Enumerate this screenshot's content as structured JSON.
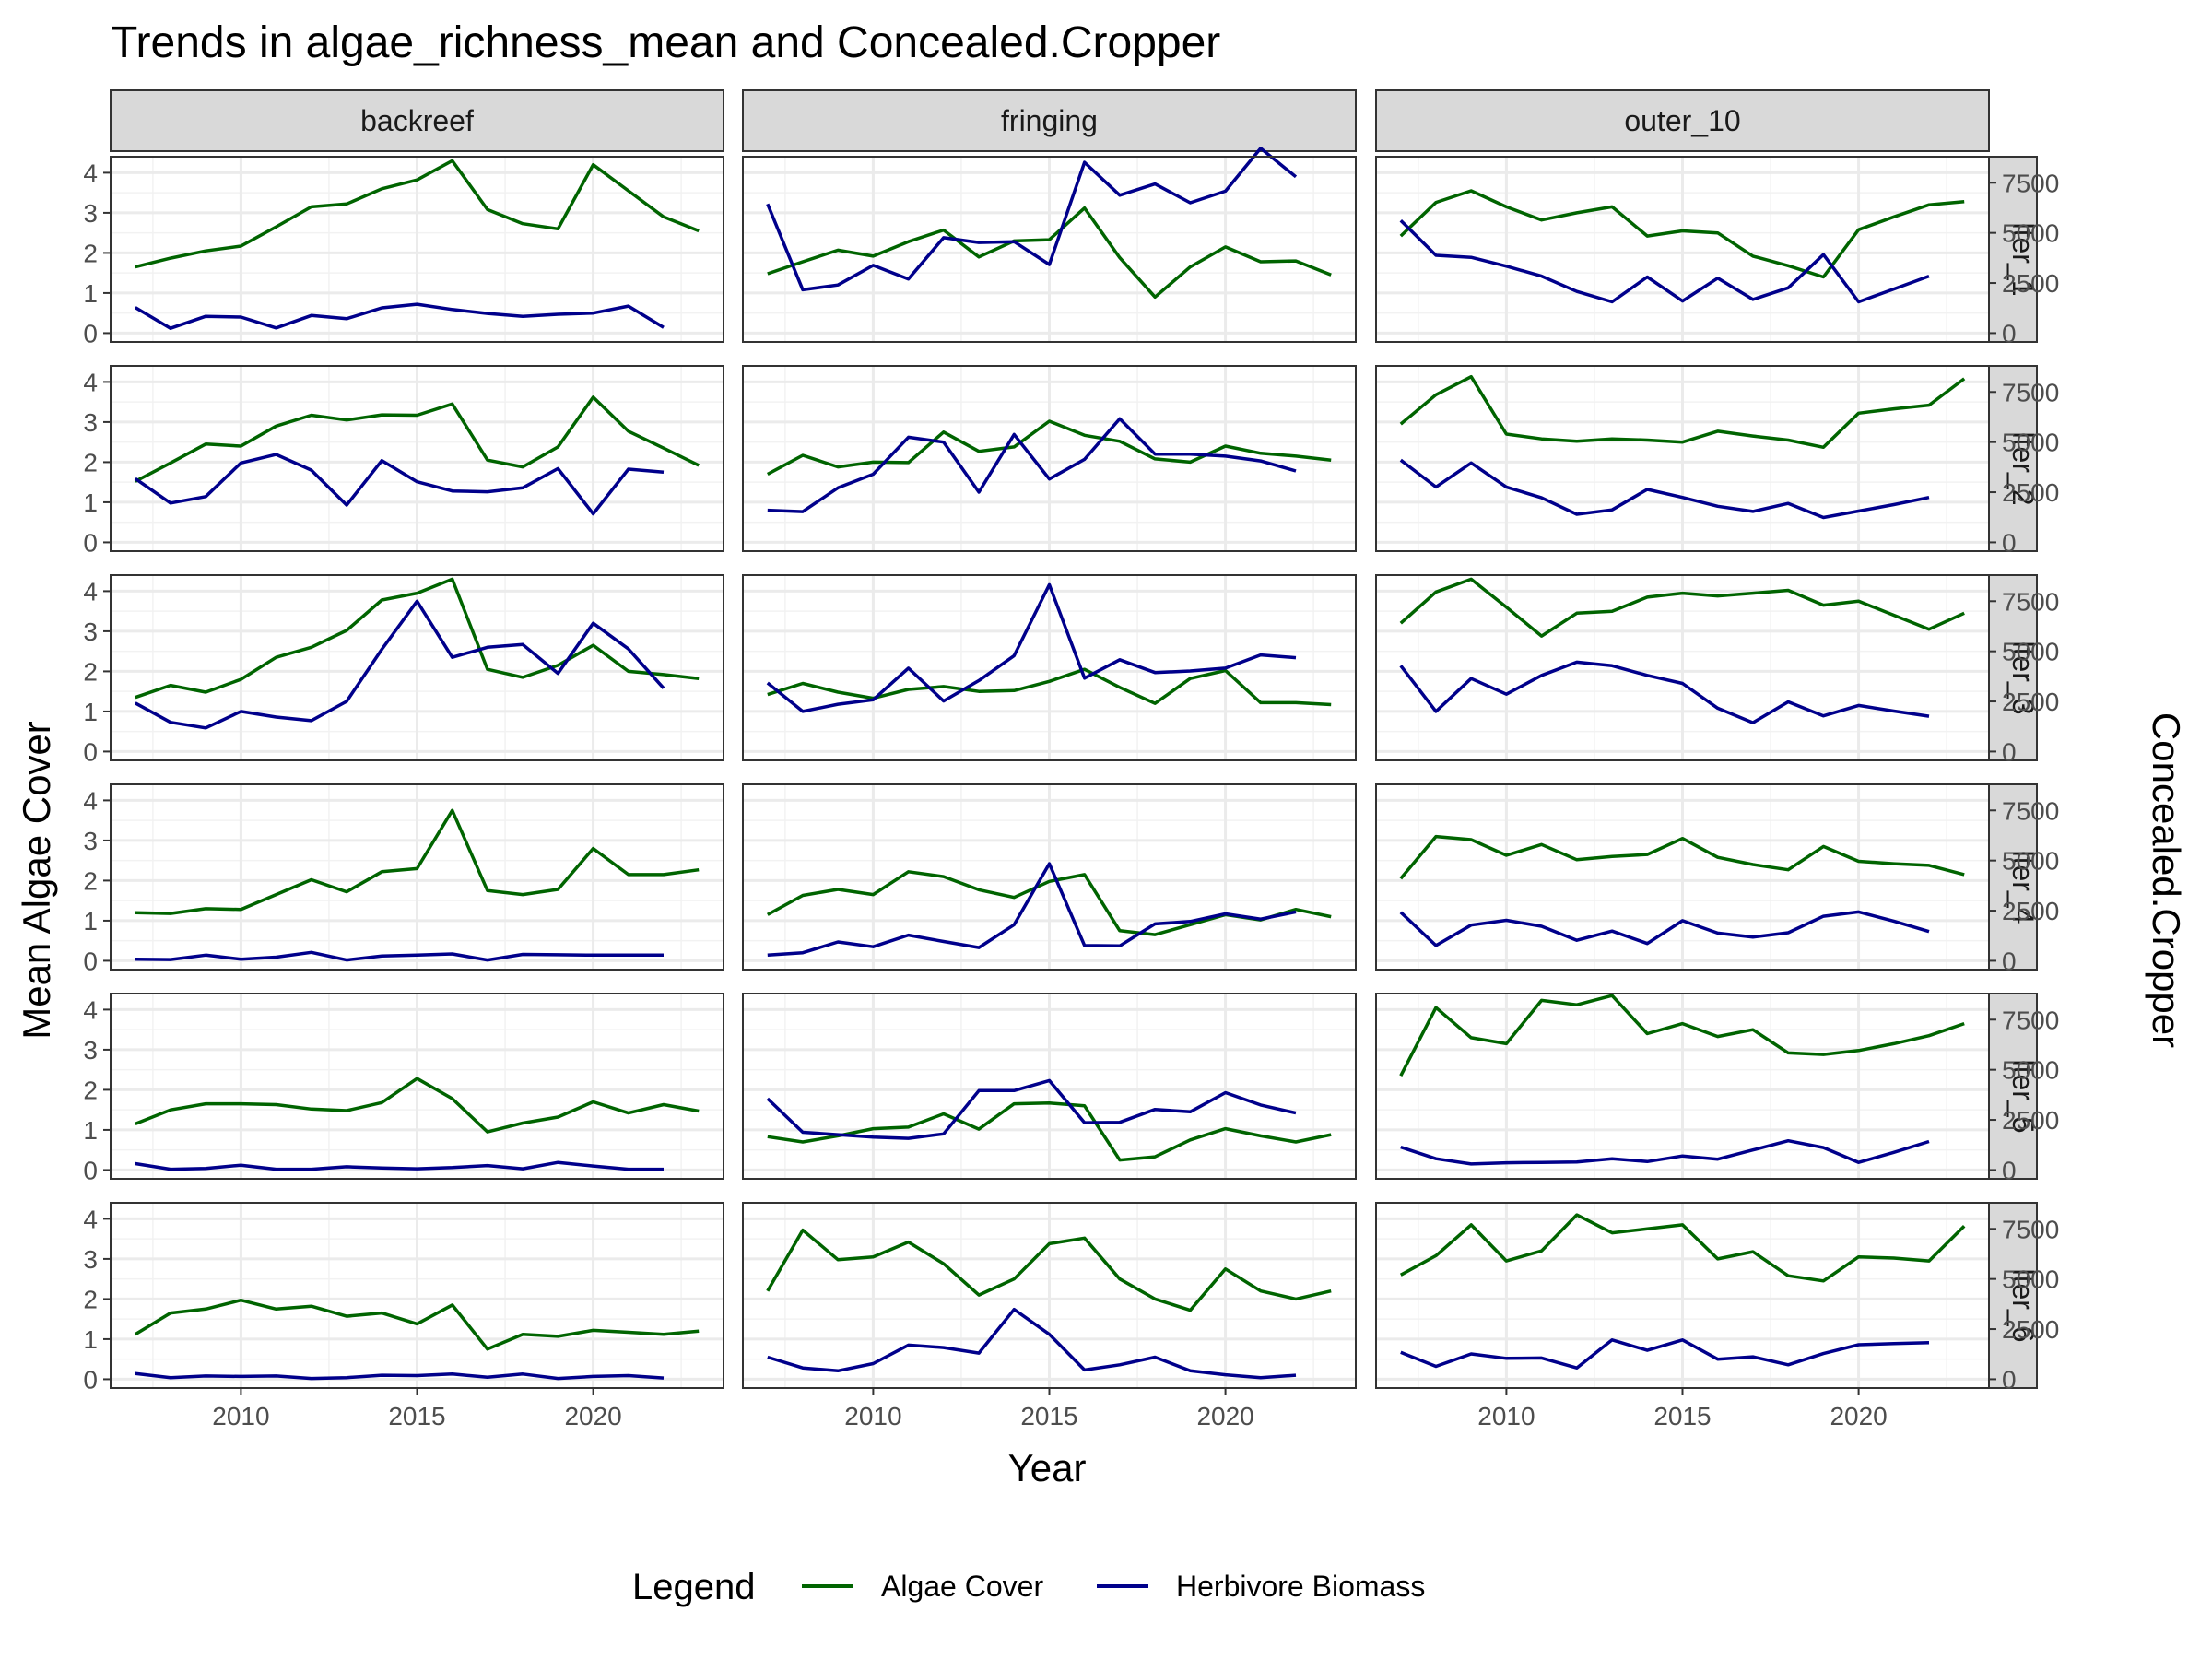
{
  "chart_data": {
    "type": "line",
    "title": "Trends in algae_richness_mean and Concealed.Cropper",
    "xlabel": "Year",
    "ylabel": "Mean Algae Cover",
    "y2label": "Concealed.Cropper",
    "x_ticks": [
      2010,
      2015,
      2020
    ],
    "y_ticks": [
      0,
      1,
      2,
      3,
      4
    ],
    "y2_ticks": [
      0,
      2500,
      5000,
      7500
    ],
    "xlim": [
      2006.3,
      2023.7
    ],
    "ylim": [
      -0.22,
      4.4
    ],
    "y2_scale": 2000,
    "grid": true,
    "colors": {
      "algae": "#006400",
      "herbivore": "#00008B"
    },
    "columns": [
      "backreef",
      "fringing",
      "outer_10"
    ],
    "rows": [
      "lter_1",
      "lter_2",
      "lter_3",
      "lter_4",
      "lter_5",
      "lter_6"
    ],
    "legend": {
      "title": "Legend",
      "position": "bottom",
      "entries": [
        {
          "key": "algae",
          "label": "Algae Cover",
          "color": "#006400"
        },
        {
          "key": "herbivore",
          "label": "Herbivore Biomass",
          "color": "#00008B"
        }
      ]
    },
    "algae_years": [
      2007,
      2008,
      2009,
      2010,
      2011,
      2012,
      2013,
      2014,
      2015,
      2016,
      2017,
      2018,
      2019,
      2020,
      2021,
      2022,
      2023
    ],
    "herbivore_years": [
      2007,
      2008,
      2009,
      2010,
      2011,
      2012,
      2013,
      2014,
      2015,
      2016,
      2017,
      2018,
      2019,
      2020,
      2021,
      2022
    ],
    "panels": [
      {
        "row": "lter_1",
        "column": "backreef",
        "algae": [
          1.65,
          1.87,
          2.05,
          2.17,
          2.65,
          3.15,
          3.22,
          3.6,
          3.82,
          4.3,
          3.08,
          2.73,
          2.6,
          4.2,
          3.55,
          2.9,
          2.55
        ],
        "herbivore": [
          1280,
          240,
          840,
          800,
          260,
          880,
          720,
          1260,
          1440,
          1180,
          980,
          840,
          940,
          1000,
          1350,
          280
        ]
      },
      {
        "row": "lter_1",
        "column": "fringing",
        "algae": [
          1.48,
          1.78,
          2.07,
          1.92,
          2.28,
          2.57,
          1.9,
          2.3,
          2.33,
          3.12,
          1.88,
          0.9,
          1.65,
          2.15,
          1.78,
          1.8,
          1.45
        ],
        "herbivore": [
          6440,
          2160,
          2400,
          3380,
          2700,
          4760,
          4520,
          4560,
          3420,
          8520,
          6880,
          7440,
          6500,
          7080,
          9220,
          7800
        ]
      },
      {
        "row": "lter_1",
        "column": "outer_10",
        "algae": [
          2.42,
          3.26,
          3.55,
          3.15,
          2.82,
          3.0,
          3.15,
          2.42,
          2.55,
          2.5,
          1.92,
          1.68,
          1.4,
          2.58,
          2.9,
          3.2,
          3.28
        ],
        "herbivore": [
          5620,
          3880,
          3780,
          3340,
          2840,
          2080,
          1560,
          2800,
          1600,
          2740,
          1680,
          2260,
          3920,
          1560,
          2200,
          2840
        ]
      },
      {
        "row": "lter_2",
        "column": "backreef",
        "algae": [
          1.52,
          1.98,
          2.45,
          2.4,
          2.9,
          3.17,
          3.05,
          3.18,
          3.17,
          3.45,
          2.05,
          1.88,
          2.38,
          3.62,
          2.77,
          2.35,
          1.92
        ],
        "herbivore": [
          3180,
          1960,
          2280,
          3960,
          4380,
          3600,
          1860,
          4080,
          3020,
          2560,
          2520,
          2720,
          3680,
          1420,
          3650,
          3500
        ]
      },
      {
        "row": "lter_2",
        "column": "fringing",
        "algae": [
          1.7,
          2.17,
          1.88,
          2.0,
          1.99,
          2.75,
          2.27,
          2.38,
          3.02,
          2.67,
          2.52,
          2.08,
          2.0,
          2.4,
          2.22,
          2.15,
          2.05
        ],
        "herbivore": [
          1600,
          1530,
          2720,
          3400,
          5240,
          5000,
          2500,
          5380,
          3160,
          4140,
          6160,
          4400,
          4400,
          4300,
          4060,
          3560
        ]
      },
      {
        "row": "lter_2",
        "column": "outer_10",
        "algae": [
          2.95,
          3.68,
          4.13,
          2.7,
          2.58,
          2.52,
          2.58,
          2.55,
          2.5,
          2.77,
          2.65,
          2.55,
          2.37,
          3.22,
          3.33,
          3.42,
          4.08
        ],
        "herbivore": [
          4100,
          2760,
          3960,
          2760,
          2220,
          1400,
          1620,
          2640,
          2240,
          1800,
          1540,
          1940,
          1240,
          1560,
          1880,
          2240
        ]
      },
      {
        "row": "lter_3",
        "column": "backreef",
        "algae": [
          1.35,
          1.65,
          1.48,
          1.8,
          2.35,
          2.6,
          3.02,
          3.78,
          3.95,
          4.3,
          2.05,
          1.85,
          2.15,
          2.65,
          2.0,
          1.92,
          1.82
        ],
        "herbivore": [
          2420,
          1460,
          1180,
          2000,
          1720,
          1540,
          2500,
          5100,
          7500,
          4700,
          5200,
          5340,
          3900,
          6400,
          5120,
          3160
        ]
      },
      {
        "row": "lter_3",
        "column": "fringing",
        "algae": [
          1.42,
          1.7,
          1.48,
          1.33,
          1.55,
          1.62,
          1.5,
          1.52,
          1.75,
          2.05,
          1.6,
          1.2,
          1.82,
          2.02,
          1.22,
          1.22,
          1.17
        ],
        "herbivore": [
          3420,
          2000,
          2360,
          2580,
          4160,
          2520,
          3540,
          4780,
          8320,
          3660,
          4580,
          3940,
          4020,
          4160,
          4820,
          4680
        ]
      },
      {
        "row": "lter_3",
        "column": "outer_10",
        "algae": [
          3.2,
          3.98,
          4.3,
          3.6,
          2.88,
          3.45,
          3.5,
          3.85,
          3.95,
          3.88,
          3.95,
          4.02,
          3.65,
          3.75,
          3.4,
          3.05,
          3.45
        ],
        "herbivore": [
          4280,
          2000,
          3640,
          2860,
          3800,
          4460,
          4280,
          3800,
          3400,
          2160,
          1440,
          2480,
          1780,
          2300,
          2020,
          1760
        ]
      },
      {
        "row": "lter_4",
        "column": "backreef",
        "algae": [
          1.2,
          1.18,
          1.3,
          1.28,
          1.65,
          2.02,
          1.72,
          2.22,
          2.3,
          3.75,
          1.75,
          1.65,
          1.78,
          2.8,
          2.15,
          2.15,
          2.27
        ],
        "herbivore": [
          80,
          60,
          280,
          80,
          180,
          420,
          40,
          240,
          280,
          340,
          40,
          320,
          300,
          280,
          280,
          280
        ]
      },
      {
        "row": "lter_4",
        "column": "fringing",
        "algae": [
          1.15,
          1.63,
          1.78,
          1.65,
          2.22,
          2.1,
          1.77,
          1.58,
          1.98,
          2.15,
          0.75,
          0.65,
          0.9,
          1.15,
          1.02,
          1.28,
          1.1
        ],
        "herbivore": [
          280,
          400,
          940,
          700,
          1280,
          960,
          660,
          1800,
          4840,
          760,
          740,
          1840,
          1960,
          2340,
          2080,
          2440
        ]
      },
      {
        "row": "lter_4",
        "column": "outer_10",
        "algae": [
          2.05,
          3.1,
          3.02,
          2.63,
          2.9,
          2.52,
          2.6,
          2.65,
          3.05,
          2.58,
          2.4,
          2.27,
          2.85,
          2.48,
          2.42,
          2.38,
          2.15
        ],
        "herbivore": [
          2420,
          760,
          1780,
          2020,
          1720,
          1020,
          1480,
          860,
          2000,
          1380,
          1180,
          1400,
          2220,
          2440,
          1980,
          1460
        ]
      },
      {
        "row": "lter_5",
        "column": "backreef",
        "algae": [
          1.15,
          1.5,
          1.65,
          1.65,
          1.63,
          1.52,
          1.48,
          1.68,
          2.28,
          1.78,
          0.95,
          1.17,
          1.32,
          1.7,
          1.42,
          1.63,
          1.47
        ],
        "herbivore": [
          320,
          40,
          80,
          240,
          40,
          40,
          160,
          100,
          60,
          120,
          220,
          60,
          380,
          200,
          40,
          40
        ]
      },
      {
        "row": "lter_5",
        "column": "fringing",
        "algae": [
          0.83,
          0.7,
          0.85,
          1.03,
          1.07,
          1.4,
          1.02,
          1.65,
          1.67,
          1.6,
          0.25,
          0.33,
          0.75,
          1.03,
          0.85,
          0.7,
          0.88
        ],
        "herbivore": [
          3560,
          1880,
          1760,
          1640,
          1580,
          1800,
          3960,
          3960,
          4460,
          2360,
          2380,
          3020,
          2900,
          3860,
          3240,
          2840
        ]
      },
      {
        "row": "lter_5",
        "column": "outer_10",
        "algae": [
          2.35,
          4.05,
          3.3,
          3.15,
          4.23,
          4.12,
          4.35,
          3.4,
          3.65,
          3.33,
          3.5,
          2.92,
          2.88,
          2.98,
          3.15,
          3.35,
          3.65
        ],
        "herbivore": [
          1140,
          560,
          300,
          360,
          380,
          400,
          560,
          420,
          700,
          540,
          1000,
          1460,
          1120,
          380,
          880,
          1420
        ]
      },
      {
        "row": "lter_6",
        "column": "backreef",
        "algae": [
          1.12,
          1.65,
          1.75,
          1.97,
          1.75,
          1.82,
          1.57,
          1.65,
          1.38,
          1.85,
          0.75,
          1.12,
          1.07,
          1.22,
          1.17,
          1.12,
          1.2
        ],
        "herbivore": [
          280,
          80,
          160,
          140,
          160,
          40,
          80,
          200,
          180,
          260,
          100,
          260,
          40,
          140,
          180,
          60
        ]
      },
      {
        "row": "lter_6",
        "column": "fringing",
        "algae": [
          2.2,
          3.72,
          2.98,
          3.05,
          3.42,
          2.88,
          2.1,
          2.5,
          3.38,
          3.52,
          2.5,
          2.0,
          1.72,
          2.75,
          2.2,
          2.0,
          2.2
        ],
        "herbivore": [
          1100,
          560,
          420,
          780,
          1700,
          1580,
          1300,
          3480,
          2240,
          460,
          720,
          1100,
          420,
          220,
          80,
          200
        ]
      },
      {
        "row": "lter_6",
        "column": "outer_10",
        "algae": [
          2.6,
          3.08,
          3.85,
          2.95,
          3.2,
          4.1,
          3.65,
          3.75,
          3.85,
          3.0,
          3.18,
          2.58,
          2.45,
          3.05,
          3.02,
          2.95,
          3.82
        ],
        "herbivore": [
          1340,
          640,
          1260,
          1040,
          1060,
          560,
          1960,
          1440,
          1960,
          1000,
          1120,
          720,
          1280,
          1720,
          1780,
          1820
        ]
      }
    ]
  }
}
